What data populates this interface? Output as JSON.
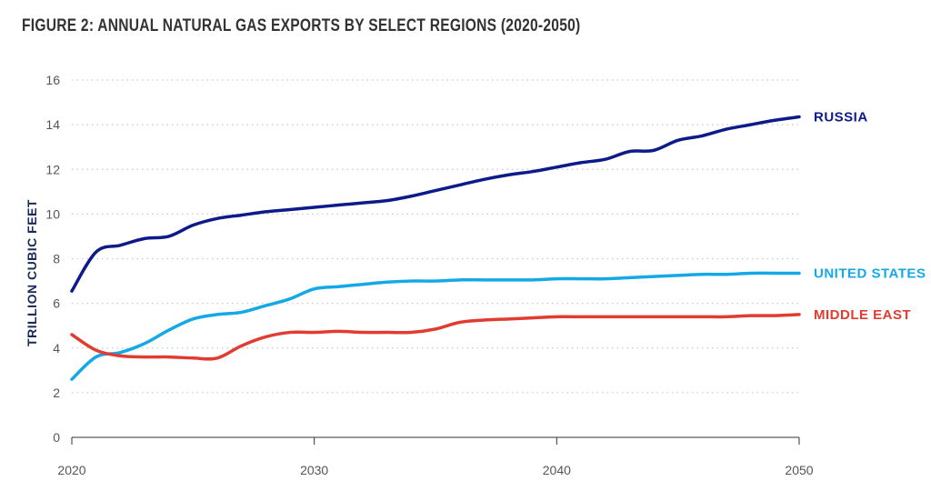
{
  "chart_data": {
    "type": "line",
    "title": "FIGURE 2: ANNUAL NATURAL GAS EXPORTS BY SELECT REGIONS (2020-2050)",
    "xlabel": "",
    "ylabel": "TRILLION CUBIC FEET",
    "xlim": [
      2020,
      2050
    ],
    "ylim": [
      0,
      16
    ],
    "x_ticks": [
      2020,
      2030,
      2040,
      2050
    ],
    "y_ticks": [
      0,
      2,
      4,
      6,
      8,
      10,
      12,
      14,
      16
    ],
    "grid": "horizontal dotted",
    "legend": "labels at right end of lines",
    "x": [
      2020,
      2021,
      2022,
      2023,
      2024,
      2025,
      2026,
      2027,
      2028,
      2029,
      2030,
      2031,
      2032,
      2033,
      2034,
      2035,
      2036,
      2037,
      2038,
      2039,
      2040,
      2041,
      2042,
      2043,
      2044,
      2045,
      2046,
      2047,
      2048,
      2049,
      2050
    ],
    "series": [
      {
        "name": "RUSSIA",
        "color": "#0d1a8a",
        "values": [
          6.55,
          8.3,
          8.6,
          8.9,
          9.0,
          9.5,
          9.8,
          9.95,
          10.1,
          10.2,
          10.3,
          10.4,
          10.5,
          10.6,
          10.8,
          11.05,
          11.3,
          11.55,
          11.75,
          11.9,
          12.1,
          12.3,
          12.45,
          12.8,
          12.85,
          13.3,
          13.5,
          13.8,
          14.0,
          14.2,
          14.35
        ]
      },
      {
        "name": "UNITED STATES",
        "color": "#14a9e6",
        "values": [
          2.6,
          3.6,
          3.8,
          4.2,
          4.8,
          5.3,
          5.5,
          5.6,
          5.9,
          6.2,
          6.65,
          6.75,
          6.85,
          6.95,
          7.0,
          7.0,
          7.05,
          7.05,
          7.05,
          7.05,
          7.1,
          7.1,
          7.1,
          7.15,
          7.2,
          7.25,
          7.3,
          7.3,
          7.35,
          7.35,
          7.35
        ]
      },
      {
        "name": "MIDDLE EAST",
        "color": "#e03c31",
        "values": [
          4.6,
          3.9,
          3.65,
          3.6,
          3.6,
          3.55,
          3.55,
          4.1,
          4.5,
          4.7,
          4.7,
          4.75,
          4.7,
          4.7,
          4.7,
          4.85,
          5.15,
          5.25,
          5.3,
          5.35,
          5.4,
          5.4,
          5.4,
          5.4,
          5.4,
          5.4,
          5.4,
          5.4,
          5.45,
          5.45,
          5.5
        ]
      }
    ]
  }
}
